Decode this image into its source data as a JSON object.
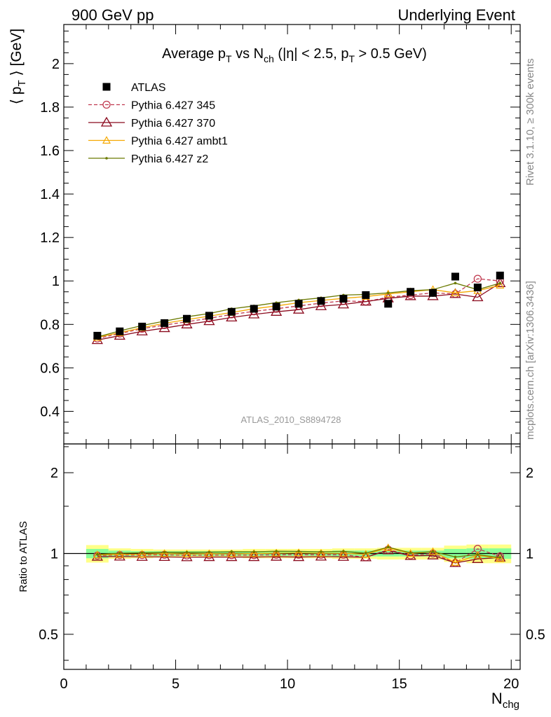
{
  "header": {
    "left": "900 GeV pp",
    "right": "Underlying Event"
  },
  "side_labels": {
    "rivet": "Rivet 3.1.10, ≥ 300k events",
    "mcplots": "mcplots.cern.ch [arXiv:1306.3436]"
  },
  "chart_data": [
    {
      "type": "scatter",
      "title": "Average p_T vs N_ch (|η| < 2.5, p_T > 0.5 GeV)",
      "title_parts": [
        "Average p",
        "T",
        " vs N",
        "ch",
        " (|η| < 2.5, p",
        "T",
        " > 0.5 GeV)"
      ],
      "ylabel": "⟨ p_T ⟩ [GeV]",
      "ylabel_parts": [
        "⟨ p",
        "T",
        " ⟩ [GeV]"
      ],
      "xlim": [
        0,
        20.4
      ],
      "ylim": [
        0.25,
        2.18
      ],
      "yticks": [
        "0.4",
        "0.6",
        "0.8",
        "1",
        "1.2",
        "1.4",
        "1.6",
        "1.8",
        "2"
      ],
      "ytick_values": [
        0.4,
        0.6,
        0.8,
        1.0,
        1.2,
        1.4,
        1.6,
        1.8,
        2.0
      ],
      "watermark": "ATLAS_2010_S8894728",
      "x": [
        1.5,
        2.5,
        3.5,
        4.5,
        5.5,
        6.5,
        7.5,
        8.5,
        9.5,
        10.5,
        11.5,
        12.5,
        13.5,
        14.5,
        15.5,
        16.5,
        17.5,
        18.5,
        19.5
      ],
      "series": [
        {
          "name": "ATLAS",
          "color": "#000000",
          "marker": "square",
          "values": [
            0.748,
            0.768,
            0.79,
            0.806,
            0.826,
            0.84,
            0.858,
            0.872,
            0.882,
            0.895,
            0.908,
            0.918,
            0.935,
            0.895,
            0.95,
            0.945,
            1.02,
            0.97,
            1.025
          ]
        },
        {
          "name": "Pythia 6.427 345",
          "color": "#c0394f",
          "marker": "open-circle",
          "dash": true,
          "values": [
            0.735,
            0.758,
            0.78,
            0.797,
            0.812,
            0.828,
            0.846,
            0.86,
            0.872,
            0.885,
            0.898,
            0.908,
            0.905,
            0.925,
            0.935,
            0.945,
            0.94,
            1.01,
            1.0
          ]
        },
        {
          "name": "Pythia 6.427 370",
          "color": "#8b0a1e",
          "marker": "open-triangle",
          "values": [
            0.728,
            0.748,
            0.768,
            0.783,
            0.8,
            0.815,
            0.832,
            0.846,
            0.858,
            0.868,
            0.884,
            0.892,
            0.905,
            0.92,
            0.93,
            0.93,
            0.94,
            0.925,
            0.99
          ]
        },
        {
          "name": "Pythia 6.427 ambt1",
          "color": "#f5a800",
          "marker": "open-triangle-small",
          "values": [
            0.74,
            0.762,
            0.785,
            0.805,
            0.822,
            0.838,
            0.855,
            0.872,
            0.885,
            0.9,
            0.91,
            0.92,
            0.928,
            0.94,
            0.95,
            0.96,
            0.945,
            0.955,
            0.98
          ]
        },
        {
          "name": "Pythia 6.427 z2",
          "color": "#6b7a00",
          "marker": "dot",
          "values": [
            0.742,
            0.77,
            0.795,
            0.815,
            0.835,
            0.85,
            0.872,
            0.885,
            0.9,
            0.912,
            0.922,
            0.935,
            0.938,
            0.945,
            0.955,
            0.96,
            0.99,
            0.96,
            0.99
          ]
        }
      ]
    },
    {
      "type": "scatter",
      "ylabel": "Ratio to ATLAS",
      "xlabel": "N_chg",
      "xlabel_parts": [
        "N",
        "chg"
      ],
      "xlim": [
        0,
        20.4
      ],
      "ylim": [
        0.37,
        2.56
      ],
      "log_y": true,
      "yticks": [
        "0.5",
        "1",
        "2"
      ],
      "ytick_values": [
        0.5,
        1,
        2
      ],
      "xticks": [
        "0",
        "5",
        "10",
        "15",
        "20"
      ],
      "xtick_values": [
        0,
        5,
        10,
        15,
        20
      ],
      "band_outer": [
        0.075,
        0.045,
        0.04,
        0.035,
        0.035,
        0.035,
        0.035,
        0.04,
        0.04,
        0.04,
        0.04,
        0.045,
        0.045,
        0.05,
        0.05,
        0.05,
        0.07,
        0.08,
        0.08
      ],
      "band_inner": [
        0.04,
        0.025,
        0.02,
        0.02,
        0.02,
        0.02,
        0.02,
        0.02,
        0.02,
        0.02,
        0.02,
        0.025,
        0.025,
        0.025,
        0.025,
        0.025,
        0.04,
        0.045,
        0.045
      ],
      "series": [
        {
          "name": "Pythia 6.427 345",
          "values": [
            0.983,
            0.987,
            0.987,
            0.989,
            0.983,
            0.986,
            0.986,
            0.986,
            0.989,
            0.989,
            0.989,
            0.989,
            0.968,
            1.034,
            0.984,
            1.0,
            0.922,
            1.041,
            0.976
          ]
        },
        {
          "name": "Pythia 6.427 370",
          "values": [
            0.973,
            0.974,
            0.972,
            0.971,
            0.969,
            0.97,
            0.97,
            0.97,
            0.973,
            0.97,
            0.974,
            0.972,
            0.968,
            1.028,
            0.979,
            0.984,
            0.922,
            0.954,
            0.966
          ]
        },
        {
          "name": "Pythia 6.427 ambt1",
          "values": [
            0.989,
            0.992,
            0.994,
            0.999,
            0.995,
            0.998,
            0.997,
            1.0,
            1.003,
            1.006,
            1.002,
            1.002,
            0.993,
            1.05,
            1.0,
            1.016,
            0.926,
            0.985,
            0.956
          ]
        },
        {
          "name": "Pythia 6.427 z2",
          "values": [
            0.992,
            1.003,
            1.006,
            1.011,
            1.011,
            1.012,
            1.016,
            1.015,
            1.02,
            1.019,
            1.015,
            1.019,
            1.003,
            1.056,
            1.005,
            1.016,
            0.971,
            0.99,
            0.966
          ]
        }
      ]
    }
  ]
}
